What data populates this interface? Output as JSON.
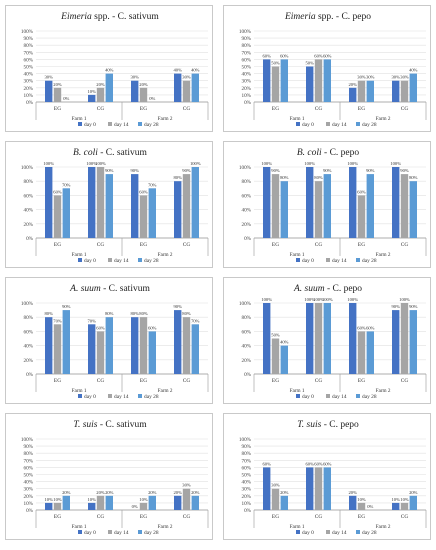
{
  "legend": [
    "day 0",
    "day 14",
    "day 28"
  ],
  "colors": [
    "#4472c4",
    "#a5a5a5",
    "#5b9bd5"
  ],
  "farms": [
    "Farm 1",
    "Farm 2"
  ],
  "groups": [
    "EG",
    "CG",
    "EG",
    "CG"
  ],
  "chart_data": [
    {
      "type": "bar",
      "title": "Eimeria spp. - C. sativum",
      "title_italic": "Eimeria",
      "title_rest": " spp. - C. sativum",
      "categories": [
        "EG",
        "CG",
        "EG",
        "CG"
      ],
      "ylim": [
        0,
        100
      ],
      "yticks": [
        "0%",
        "10%",
        "20%",
        "30%",
        "40%",
        "50%",
        "60%",
        "70%",
        "80%",
        "90%",
        "100%"
      ],
      "series": [
        {
          "name": "day 0",
          "values": [
            30,
            10,
            30,
            40
          ],
          "labels": [
            "30%",
            "10%",
            "30%",
            "40%"
          ]
        },
        {
          "name": "day 14",
          "values": [
            20,
            20,
            20,
            30
          ],
          "labels": [
            "20%",
            "20%",
            "20%",
            "30%"
          ]
        },
        {
          "name": "day 28",
          "values": [
            0,
            40,
            0,
            40
          ],
          "labels": [
            "0%",
            "40%",
            "0%",
            "40%"
          ]
        }
      ]
    },
    {
      "type": "bar",
      "title": "Eimeria spp. - C. pepo",
      "title_italic": "Eimeria",
      "title_rest": " spp. - C. pepo",
      "categories": [
        "EG",
        "CG",
        "EG",
        "CG"
      ],
      "ylim": [
        0,
        100
      ],
      "yticks": [
        "0%",
        "10%",
        "20%",
        "30%",
        "40%",
        "50%",
        "60%",
        "70%",
        "80%",
        "90%",
        "100%"
      ],
      "series": [
        {
          "name": "day 0",
          "values": [
            60,
            50,
            20,
            30
          ],
          "labels": [
            "60%",
            "50%",
            "20%",
            "30%"
          ]
        },
        {
          "name": "day 14",
          "values": [
            50,
            60,
            30,
            30
          ],
          "labels": [
            "50%",
            "60%",
            "30%",
            "30%"
          ]
        },
        {
          "name": "day 28",
          "values": [
            60,
            60,
            30,
            40
          ],
          "labels": [
            "60%",
            "60%",
            "30%",
            "40%"
          ]
        }
      ]
    },
    {
      "type": "bar",
      "title": "B. coli - C. sativum",
      "title_italic": "B. coli",
      "title_rest": " - C. sativum",
      "categories": [
        "EG",
        "CG",
        "EG",
        "CG"
      ],
      "ylim": [
        0,
        100
      ],
      "yticks": [
        "0%",
        "20%",
        "40%",
        "60%",
        "80%",
        "100%"
      ],
      "series": [
        {
          "name": "day 0",
          "values": [
            100,
            100,
            90,
            80
          ],
          "labels": [
            "100%",
            "100%",
            "90%",
            "80%"
          ]
        },
        {
          "name": "day 14",
          "values": [
            60,
            100,
            60,
            90
          ],
          "labels": [
            "60%",
            "100%",
            "60%",
            "90%"
          ]
        },
        {
          "name": "day 28",
          "values": [
            70,
            90,
            70,
            100
          ],
          "labels": [
            "70%",
            "90%",
            "70%",
            "100%"
          ]
        }
      ]
    },
    {
      "type": "bar",
      "title": "B. coli - C. pepo",
      "title_italic": "B. coli",
      "title_rest": " - C. pepo",
      "categories": [
        "EG",
        "CG",
        "EG",
        "CG"
      ],
      "ylim": [
        0,
        100
      ],
      "yticks": [
        "0%",
        "20%",
        "40%",
        "60%",
        "80%",
        "100%"
      ],
      "series": [
        {
          "name": "day 0",
          "values": [
            100,
            100,
            100,
            100
          ],
          "labels": [
            "100%",
            "100%",
            "100%",
            "100%"
          ]
        },
        {
          "name": "day 14",
          "values": [
            90,
            80,
            60,
            90
          ],
          "labels": [
            "90%",
            "80%",
            "60%",
            "90%"
          ]
        },
        {
          "name": "day 28",
          "values": [
            80,
            90,
            90,
            80
          ],
          "labels": [
            "80%",
            "90%",
            "90%",
            "80%"
          ]
        }
      ]
    },
    {
      "type": "bar",
      "title": "A. suum - C. sativum",
      "title_italic": "A. suum",
      "title_rest": " - C. sativum",
      "categories": [
        "EG",
        "CG",
        "EG",
        "CG"
      ],
      "ylim": [
        0,
        100
      ],
      "yticks": [
        "0%",
        "20%",
        "40%",
        "60%",
        "80%",
        "100%"
      ],
      "series": [
        {
          "name": "day 0",
          "values": [
            80,
            70,
            80,
            90
          ],
          "labels": [
            "80%",
            "70%",
            "80%",
            "90%"
          ]
        },
        {
          "name": "day 14",
          "values": [
            70,
            60,
            80,
            80
          ],
          "labels": [
            "70%",
            "60%",
            "80%",
            "80%"
          ]
        },
        {
          "name": "day 28",
          "values": [
            90,
            80,
            60,
            70
          ],
          "labels": [
            "90%",
            "80%",
            "60%",
            "70%"
          ]
        }
      ]
    },
    {
      "type": "bar",
      "title": "A. suum - C. pepo",
      "title_italic": "A. suum",
      "title_rest": " - C. pepo",
      "categories": [
        "EG",
        "CG",
        "EG",
        "CG"
      ],
      "ylim": [
        0,
        100
      ],
      "yticks": [
        "0%",
        "20%",
        "40%",
        "60%",
        "80%",
        "100%"
      ],
      "series": [
        {
          "name": "day 0",
          "values": [
            100,
            100,
            100,
            90
          ],
          "labels": [
            "100%",
            "100%",
            "100%",
            "90%"
          ]
        },
        {
          "name": "day 14",
          "values": [
            50,
            100,
            60,
            100
          ],
          "labels": [
            "50%",
            "100%",
            "60%",
            "100%"
          ]
        },
        {
          "name": "day 28",
          "values": [
            40,
            100,
            60,
            90
          ],
          "labels": [
            "40%",
            "100%",
            "60%",
            "90%"
          ]
        }
      ]
    },
    {
      "type": "bar",
      "title": "T. suis - C. sativum",
      "title_italic": "T. suis",
      "title_rest": " - C. sativum",
      "categories": [
        "EG",
        "CG",
        "EG",
        "CG"
      ],
      "ylim": [
        0,
        100
      ],
      "yticks": [
        "0%",
        "10%",
        "20%",
        "30%",
        "40%",
        "50%",
        "60%",
        "70%",
        "80%",
        "90%",
        "100%"
      ],
      "series": [
        {
          "name": "day 0",
          "values": [
            10,
            10,
            0,
            20
          ],
          "labels": [
            "10%",
            "10%",
            "0%",
            "20%"
          ]
        },
        {
          "name": "day 14",
          "values": [
            10,
            20,
            10,
            30
          ],
          "labels": [
            "10%",
            "20%",
            "10%",
            "30%"
          ]
        },
        {
          "name": "day 28",
          "values": [
            20,
            20,
            20,
            20
          ],
          "labels": [
            "20%",
            "20%",
            "20%",
            "20%"
          ]
        }
      ]
    },
    {
      "type": "bar",
      "title": "T. suis - C. pepo",
      "title_italic": "T. suis",
      "title_rest": " - C. pepo",
      "categories": [
        "EG",
        "CG",
        "EG",
        "CG"
      ],
      "ylim": [
        0,
        100
      ],
      "yticks": [
        "0%",
        "10%",
        "20%",
        "30%",
        "40%",
        "50%",
        "60%",
        "70%",
        "80%",
        "90%",
        "100%"
      ],
      "series": [
        {
          "name": "day 0",
          "values": [
            60,
            60,
            20,
            10
          ],
          "labels": [
            "60%",
            "60%",
            "20%",
            "10%"
          ]
        },
        {
          "name": "day 14",
          "values": [
            30,
            60,
            10,
            10
          ],
          "labels": [
            "30%",
            "60%",
            "10%",
            "10%"
          ]
        },
        {
          "name": "day 28",
          "values": [
            20,
            60,
            0,
            20
          ],
          "labels": [
            "20%",
            "60%",
            "0%",
            "20%"
          ]
        }
      ]
    }
  ]
}
